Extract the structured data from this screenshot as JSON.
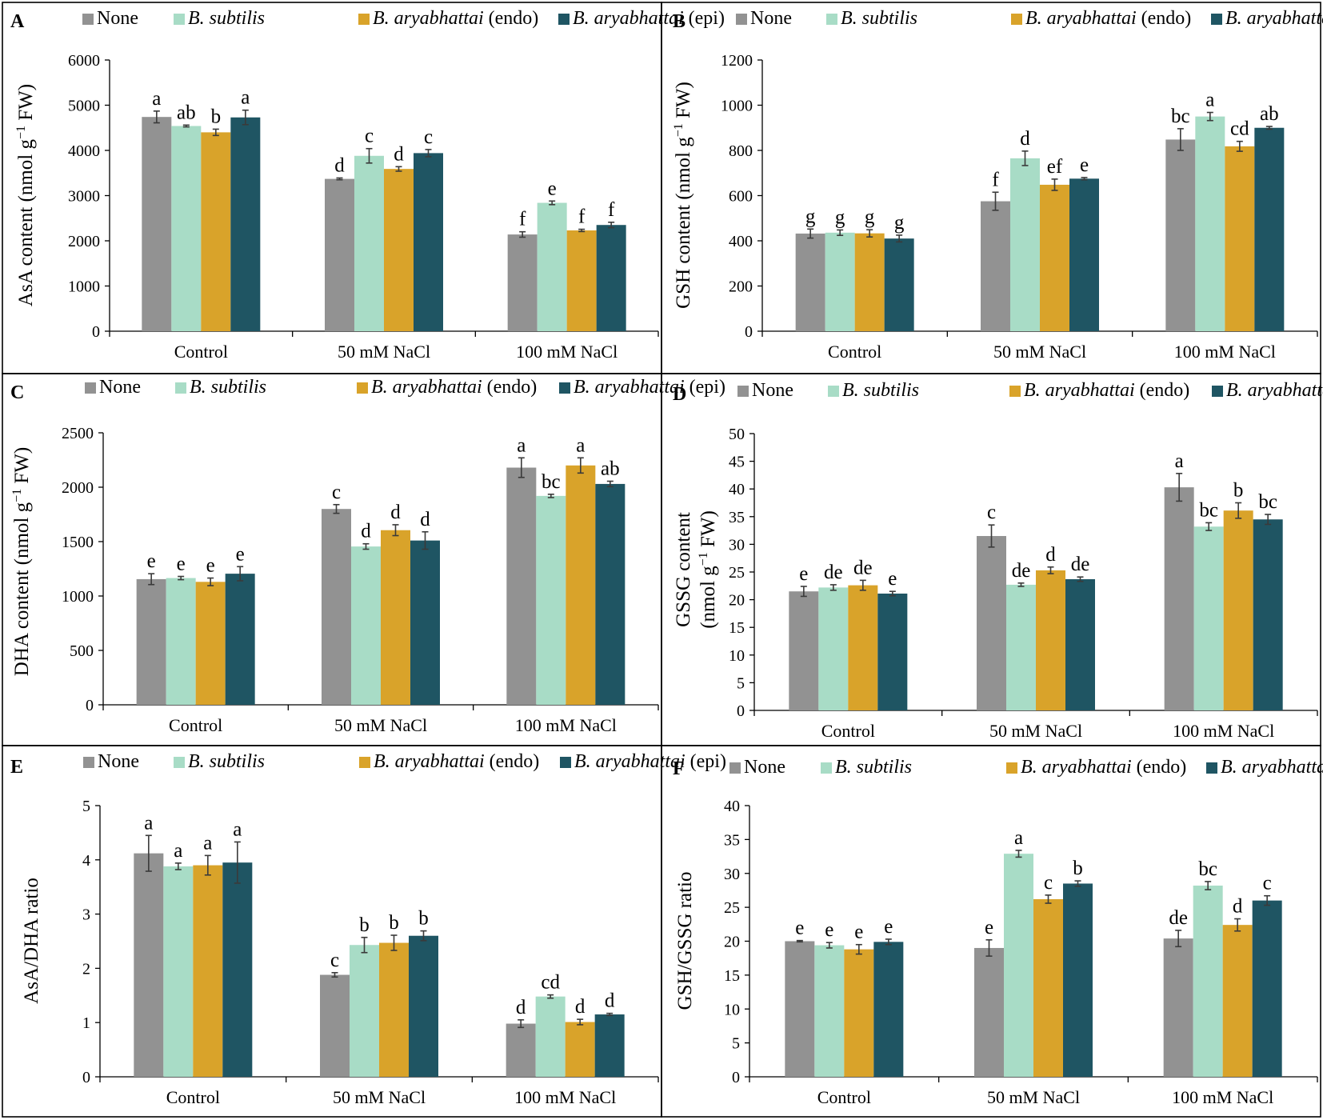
{
  "figure": {
    "series_names": [
      "None",
      "B. subtilis",
      "B. aryabhattai (endo)",
      "B. aryabhattai (epi)"
    ],
    "series_legend_parts": [
      {
        "italic": "",
        "suffix": "None"
      },
      {
        "italic": "B. subtilis",
        "suffix": ""
      },
      {
        "italic": "B. aryabhattai",
        "suffix": " (endo)"
      },
      {
        "italic": "B. aryabhattai",
        "suffix": " (epi)"
      }
    ],
    "series_colors": [
      "#929292",
      "#a8dcc6",
      "#d9a32a",
      "#1f5563"
    ]
  },
  "chart_data": [
    {
      "panel": "A",
      "type": "bar",
      "title": "",
      "ylabel": "AsA content (nmol g−1 FW)",
      "ylabel_parts": [
        "AsA content (nmol g",
        "−1",
        " FW)"
      ],
      "categories": [
        "Control",
        "50 mM NaCl",
        "100 mM NaCl"
      ],
      "ylim": [
        0,
        6000
      ],
      "yticks": [
        0,
        1000,
        2000,
        3000,
        4000,
        5000,
        6000
      ],
      "series": [
        {
          "name": "None",
          "values": [
            4740,
            3370,
            2140
          ],
          "errors": [
            130,
            20,
            60
          ],
          "labels": [
            "a",
            "d",
            "f"
          ]
        },
        {
          "name": "B. subtilis",
          "values": [
            4540,
            3880,
            2840
          ],
          "errors": [
            20,
            160,
            40
          ],
          "labels": [
            "ab",
            "c",
            "e"
          ]
        },
        {
          "name": "B. aryabhattai (endo)",
          "values": [
            4400,
            3590,
            2230
          ],
          "errors": [
            70,
            50,
            25
          ],
          "labels": [
            "b",
            "d",
            "f"
          ]
        },
        {
          "name": "B. aryabhattai (epi)",
          "values": [
            4730,
            3940,
            2350
          ],
          "errors": [
            160,
            80,
            60
          ],
          "labels": [
            "a",
            "c",
            "f"
          ]
        }
      ]
    },
    {
      "panel": "B",
      "type": "bar",
      "title": "",
      "ylabel": "GSH content (nmol g−1 FW)",
      "ylabel_parts": [
        "GSH content (nmol g",
        "−1",
        " FW)"
      ],
      "categories": [
        "Control",
        "50 mM NaCl",
        "100 mM NaCl"
      ],
      "ylim": [
        0,
        1200
      ],
      "yticks": [
        0,
        200,
        400,
        600,
        800,
        1000,
        1200
      ],
      "series": [
        {
          "name": "None",
          "values": [
            432,
            575,
            848
          ],
          "errors": [
            20,
            40,
            48
          ],
          "labels": [
            "g",
            "f",
            "bc"
          ]
        },
        {
          "name": "B. subtilis",
          "values": [
            436,
            765,
            950
          ],
          "errors": [
            12,
            32,
            18
          ],
          "labels": [
            "g",
            "d",
            "a"
          ]
        },
        {
          "name": "B. aryabhattai (endo)",
          "values": [
            433,
            648,
            818
          ],
          "errors": [
            16,
            25,
            22
          ],
          "labels": [
            "g",
            "ef",
            "cd"
          ]
        },
        {
          "name": "B. aryabhattai (epi)",
          "values": [
            410,
            675,
            900
          ],
          "errors": [
            15,
            5,
            6
          ],
          "labels": [
            "g",
            "e",
            "ab"
          ]
        }
      ]
    },
    {
      "panel": "C",
      "type": "bar",
      "title": "",
      "ylabel": "DHA content (nmol g−1 FW)",
      "ylabel_parts": [
        "DHA content (nmol g",
        "−1",
        " FW)"
      ],
      "categories": [
        "Control",
        "50 mM NaCl",
        "100 mM NaCl"
      ],
      "ylim": [
        0,
        2500
      ],
      "yticks": [
        0,
        500,
        1000,
        1500,
        2000,
        2500
      ],
      "series": [
        {
          "name": "None",
          "values": [
            1155,
            1800,
            2180
          ],
          "errors": [
            50,
            40,
            90
          ],
          "labels": [
            "e",
            "c",
            "a"
          ]
        },
        {
          "name": "B. subtilis",
          "values": [
            1165,
            1455,
            1920
          ],
          "errors": [
            15,
            25,
            15
          ],
          "labels": [
            "e",
            "d",
            "bc"
          ]
        },
        {
          "name": "B. aryabhattai (endo)",
          "values": [
            1130,
            1605,
            2200
          ],
          "errors": [
            35,
            50,
            70
          ],
          "labels": [
            "e",
            "d",
            "a"
          ]
        },
        {
          "name": "B. aryabhattai (epi)",
          "values": [
            1205,
            1510,
            2030
          ],
          "errors": [
            65,
            80,
            25
          ],
          "labels": [
            "e",
            "d",
            "ab"
          ]
        }
      ]
    },
    {
      "panel": "D",
      "type": "bar",
      "title": "",
      "ylabel": "GSSG content (nmol g−1 FW)",
      "ylabel_line1": "GSSG content",
      "ylabel_parts": [
        "(nmol g",
        "−1",
        " FW)"
      ],
      "categories": [
        "Control",
        "50 mM NaCl",
        "100 mM NaCl"
      ],
      "ylim": [
        0,
        50
      ],
      "yticks": [
        0,
        5,
        10,
        15,
        20,
        25,
        30,
        35,
        40,
        45,
        50
      ],
      "series": [
        {
          "name": "None",
          "values": [
            21.5,
            31.5,
            40.3
          ],
          "errors": [
            0.9,
            2.0,
            2.5
          ],
          "labels": [
            "e",
            "c",
            "a"
          ]
        },
        {
          "name": "B. subtilis",
          "values": [
            22.2,
            22.7,
            33.2
          ],
          "errors": [
            0.5,
            0.3,
            0.7
          ],
          "labels": [
            "de",
            "de",
            "bc"
          ]
        },
        {
          "name": "B. aryabhattai (endo)",
          "values": [
            22.6,
            25.3,
            36.1
          ],
          "errors": [
            0.9,
            0.6,
            1.4
          ],
          "labels": [
            "de",
            "d",
            "b"
          ]
        },
        {
          "name": "B. aryabhattai (epi)",
          "values": [
            21.1,
            23.7,
            34.5
          ],
          "errors": [
            0.4,
            0.4,
            0.9
          ],
          "labels": [
            "e",
            "de",
            "bc"
          ]
        }
      ]
    },
    {
      "panel": "E",
      "type": "bar",
      "title": "",
      "ylabel": "AsA/DHA ratio",
      "categories": [
        "Control",
        "50 mM NaCl",
        "100 mM NaCl"
      ],
      "ylim": [
        0,
        5
      ],
      "yticks": [
        0,
        1,
        2,
        3,
        4,
        5
      ],
      "series": [
        {
          "name": "None",
          "values": [
            4.12,
            1.88,
            0.98
          ],
          "errors": [
            0.33,
            0.04,
            0.07
          ],
          "labels": [
            "a",
            "c",
            "d"
          ]
        },
        {
          "name": "B. subtilis",
          "values": [
            3.88,
            2.43,
            1.48
          ],
          "errors": [
            0.06,
            0.14,
            0.03
          ],
          "labels": [
            "a",
            "b",
            "cd"
          ]
        },
        {
          "name": "B. aryabhattai (endo)",
          "values": [
            3.9,
            2.47,
            1.01
          ],
          "errors": [
            0.18,
            0.14,
            0.05
          ],
          "labels": [
            "a",
            "b",
            "d"
          ]
        },
        {
          "name": "B. aryabhattai (epi)",
          "values": [
            3.95,
            2.6,
            1.15
          ],
          "errors": [
            0.38,
            0.09,
            0.02
          ],
          "labels": [
            "a",
            "b",
            "d"
          ]
        }
      ]
    },
    {
      "panel": "F",
      "type": "bar",
      "title": "",
      "ylabel": "GSH/GSSG ratio",
      "categories": [
        "Control",
        "50 mM NaCl",
        "100 mM NaCl"
      ],
      "ylim": [
        0,
        40
      ],
      "yticks": [
        0,
        5,
        10,
        15,
        20,
        25,
        30,
        35,
        40
      ],
      "series": [
        {
          "name": "None",
          "values": [
            20.0,
            19.0,
            20.4
          ],
          "errors": [
            0.1,
            1.2,
            1.2
          ],
          "labels": [
            "e",
            "e",
            "de"
          ]
        },
        {
          "name": "B. subtilis",
          "values": [
            19.4,
            32.9,
            28.2
          ],
          "errors": [
            0.4,
            0.5,
            0.6
          ],
          "labels": [
            "e",
            "a",
            "bc"
          ]
        },
        {
          "name": "B. aryabhattai (endo)",
          "values": [
            18.8,
            26.2,
            22.4
          ],
          "errors": [
            0.7,
            0.6,
            0.9
          ],
          "labels": [
            "e",
            "c",
            "d"
          ]
        },
        {
          "name": "B. aryabhattai (epi)",
          "values": [
            19.9,
            28.5,
            26.0
          ],
          "errors": [
            0.4,
            0.4,
            0.7
          ],
          "labels": [
            "e",
            "b",
            "c"
          ]
        }
      ]
    }
  ]
}
